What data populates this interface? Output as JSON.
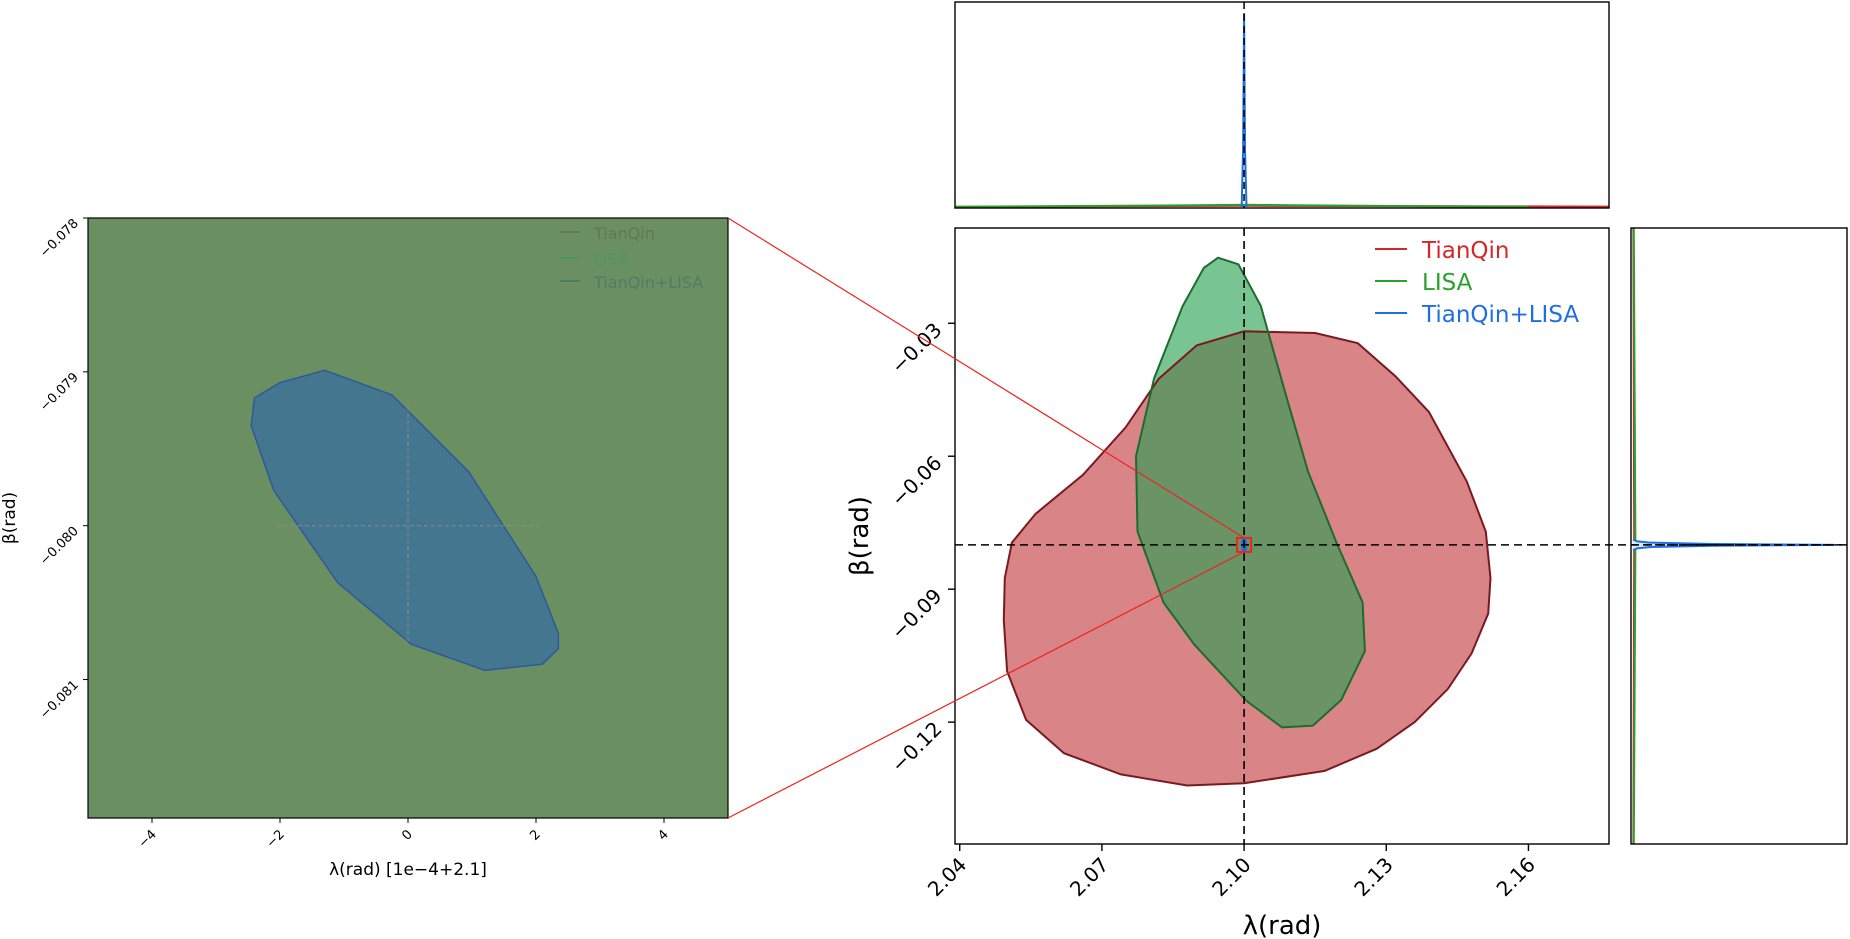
{
  "colors": {
    "tianqin": "#d62728",
    "lisa": "#2ca02c",
    "tianqin_lisa": "#1f6fe0",
    "tianqin_fill": "#d98487",
    "lisa_fill": "#78c493",
    "overlap_fill": "#6a9466",
    "inset_background": "#6a9062",
    "inset_ellipse": "#45768f",
    "inset_ellipse_edge": "#2e5a99",
    "guide_lines": "#ee2222"
  },
  "legend": {
    "entries": [
      "TianQin",
      "LISA",
      "TianQin+LISA"
    ]
  },
  "chart_data": [
    {
      "panel": "main-joint",
      "type": "area",
      "xlabel": "λ(rad)",
      "ylabel": "β(rad)",
      "xlim": [
        2.039,
        2.177
      ],
      "ylim": [
        -0.1475,
        -0.0085
      ],
      "xticks": [
        "2.04",
        "2.07",
        "2.10",
        "2.13",
        "2.16"
      ],
      "xtick_values": [
        2.04,
        2.07,
        2.1,
        2.13,
        2.16
      ],
      "yticks": [
        "−0.03",
        "−0.06",
        "−0.09",
        "−0.12"
      ],
      "ytick_values": [
        -0.03,
        -0.06,
        -0.09,
        -0.12
      ],
      "truth": {
        "lambda": 2.1,
        "beta": -0.08
      },
      "grid": false,
      "legend_position": "top-right",
      "series": [
        {
          "name": "TianQin",
          "color_key": "tianqin",
          "contour": [
            [
              2.1,
              -0.0318
            ],
            [
              2.115,
              -0.0322
            ],
            [
              2.124,
              -0.0345
            ],
            [
              2.132,
              -0.042
            ],
            [
              2.139,
              -0.05
            ],
            [
              2.147,
              -0.0657
            ],
            [
              2.151,
              -0.077
            ],
            [
              2.152,
              -0.0875
            ],
            [
              2.1515,
              -0.0955
            ],
            [
              2.148,
              -0.1045
            ],
            [
              2.143,
              -0.1125
            ],
            [
              2.136,
              -0.12
            ],
            [
              2.128,
              -0.126
            ],
            [
              2.117,
              -0.131
            ],
            [
              2.1,
              -0.1338
            ],
            [
              2.088,
              -0.1343
            ],
            [
              2.074,
              -0.1318
            ],
            [
              2.062,
              -0.127
            ],
            [
              2.054,
              -0.1195
            ],
            [
              2.05,
              -0.1085
            ],
            [
              2.0493,
              -0.097
            ],
            [
              2.0495,
              -0.0875
            ],
            [
              2.051,
              -0.0795
            ],
            [
              2.056,
              -0.073
            ],
            [
              2.066,
              -0.0642
            ],
            [
              2.075,
              -0.0535
            ],
            [
              2.082,
              -0.0425
            ],
            [
              2.09,
              -0.035
            ],
            [
              2.1,
              -0.0318
            ]
          ]
        },
        {
          "name": "LISA",
          "color_key": "lisa",
          "contour": [
            [
              2.0945,
              -0.0152
            ],
            [
              2.0988,
              -0.0167
            ],
            [
              2.1035,
              -0.026
            ],
            [
              2.1085,
              -0.045
            ],
            [
              2.1135,
              -0.0635
            ],
            [
              2.1195,
              -0.0795
            ],
            [
              2.125,
              -0.093
            ],
            [
              2.1255,
              -0.104
            ],
            [
              2.1205,
              -0.115
            ],
            [
              2.1145,
              -0.1208
            ],
            [
              2.108,
              -0.1212
            ],
            [
              2.1005,
              -0.1152
            ],
            [
              2.0895,
              -0.1025
            ],
            [
              2.083,
              -0.093
            ],
            [
              2.0775,
              -0.077
            ],
            [
              2.0772,
              -0.06
            ],
            [
              2.081,
              -0.0425
            ],
            [
              2.087,
              -0.0262
            ],
            [
              2.0915,
              -0.0175
            ],
            [
              2.0945,
              -0.0152
            ]
          ]
        },
        {
          "name": "TianQin+LISA",
          "color_key": "tianqin_lisa",
          "contour": [
            [
              2.0996,
              -0.0787
            ],
            [
              2.1004,
              -0.0787
            ],
            [
              2.1006,
              -0.08
            ],
            [
              2.1004,
              -0.0813
            ],
            [
              2.0996,
              -0.0813
            ],
            [
              2.0994,
              -0.08
            ],
            [
              2.0996,
              -0.0787
            ]
          ]
        }
      ]
    },
    {
      "panel": "top-marginal",
      "type": "line",
      "x_range": [
        2.039,
        2.177
      ],
      "truth": 2.1,
      "series": [
        {
          "name": "TianQin",
          "color_key": "tianqin",
          "x": [
            2.039,
            2.1,
            2.14,
            2.177
          ],
          "y": [
            0.001,
            0.006,
            0.004,
            0.002
          ]
        },
        {
          "name": "LISA",
          "color_key": "lisa",
          "x": [
            2.039,
            2.09,
            2.1,
            2.11,
            2.16
          ],
          "y": [
            0.001,
            0.009,
            0.012,
            0.009,
            0.001
          ]
        },
        {
          "name": "TianQin+LISA",
          "color_key": "tianqin_lisa",
          "x": [
            2.0995,
            2.0998,
            2.1,
            2.1002,
            2.1005
          ],
          "y": [
            0.0,
            0.3,
            1.0,
            0.3,
            0.0
          ]
        }
      ]
    },
    {
      "panel": "right-marginal",
      "type": "line",
      "y_range": [
        -0.1475,
        -0.0085
      ],
      "truth": -0.08,
      "series": [
        {
          "name": "TianQin",
          "color_key": "tianqin",
          "y": [
            -0.1475,
            -0.08,
            -0.0085
          ],
          "x": [
            0.002,
            0.006,
            0.002
          ]
        },
        {
          "name": "LISA",
          "color_key": "lisa",
          "y": [
            -0.1475,
            -0.08,
            -0.0085
          ],
          "x": [
            0.004,
            0.012,
            0.004
          ]
        },
        {
          "name": "TianQin+LISA",
          "color_key": "tianqin_lisa",
          "y": [
            -0.0812,
            -0.0808,
            -0.0805,
            -0.0802,
            -0.08,
            -0.0798,
            -0.0795,
            -0.0792,
            -0.0788
          ],
          "x": [
            0.0,
            0.02,
            0.08,
            0.4,
            1.0,
            0.4,
            0.08,
            0.02,
            0.0
          ]
        }
      ]
    },
    {
      "panel": "inset-zoom",
      "type": "area",
      "xlabel": "λ(rad) [1e−4+2.1]",
      "ylabel": "β(rad)",
      "xlim": [
        -5,
        5
      ],
      "ylim": [
        -0.0819,
        -0.078
      ],
      "xticks": [
        "−4",
        "−2",
        "0",
        "2",
        "4"
      ],
      "xtick_values": [
        -4,
        -2,
        0,
        2,
        4
      ],
      "yticks": [
        "−0.078",
        "−0.079",
        "−0.080",
        "−0.081"
      ],
      "ytick_values": [
        -0.078,
        -0.079,
        -0.08,
        -0.081
      ],
      "truth": {
        "lambda": 0,
        "beta": -0.08
      },
      "legend_position": "top-right",
      "series": [
        {
          "name": "TianQin+LISA",
          "color_key": "tianqin_lisa",
          "contour": [
            [
              -1.3,
              -0.07899
            ],
            [
              -0.25,
              -0.07915
            ],
            [
              0.95,
              -0.07965
            ],
            [
              2.0,
              -0.08033
            ],
            [
              2.35,
              -0.0807
            ],
            [
              2.35,
              -0.0808
            ],
            [
              2.1,
              -0.0809
            ],
            [
              1.2,
              -0.08094
            ],
            [
              0.05,
              -0.08077
            ],
            [
              -1.1,
              -0.08037
            ],
            [
              -2.1,
              -0.07977
            ],
            [
              -2.45,
              -0.07935
            ],
            [
              -2.4,
              -0.07917
            ],
            [
              -2.0,
              -0.07907
            ],
            [
              -1.3,
              -0.07899
            ]
          ]
        }
      ]
    }
  ]
}
